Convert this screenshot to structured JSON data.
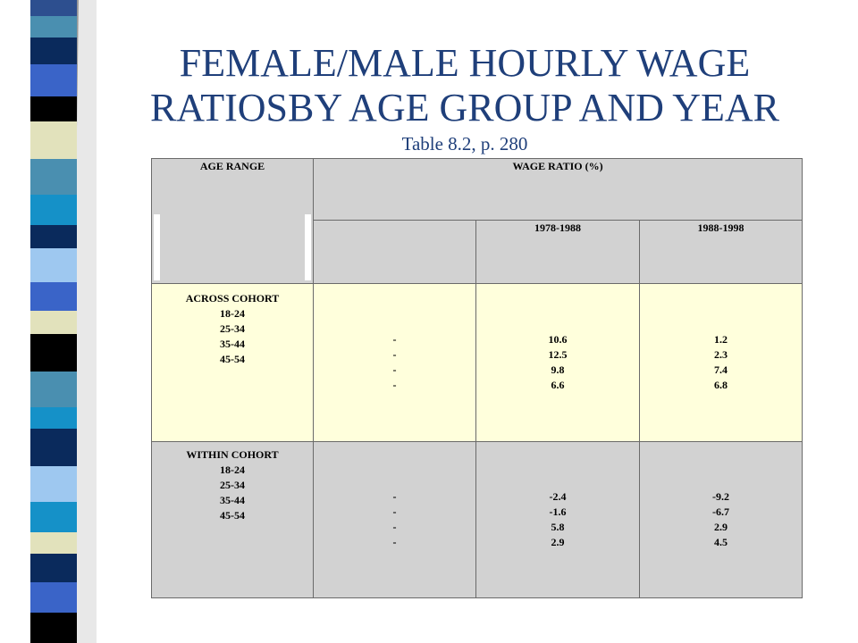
{
  "slide": {
    "title_line1": "FEMALE/MALE HOURLY WAGE",
    "title_line2": "RATIOSBY AGE GROUP AND YEAR",
    "subtitle": "Table 8.2, p. 280"
  },
  "table": {
    "col_age": "AGE RANGE",
    "col_ratio": "WAGE RATIO (%)",
    "periods": [
      "1978-1988",
      "1988-1998"
    ],
    "rows": [
      {
        "group": "ACROSS COHORT",
        "ages": [
          "18-24",
          "25-34",
          "35-44",
          "45-54"
        ],
        "blank": [
          "-",
          "-",
          "-",
          "-"
        ],
        "p1": [
          "10.6",
          "12.5",
          "9.8",
          "6.6"
        ],
        "p2": [
          "1.2",
          "2.3",
          "7.4",
          "6.8"
        ]
      },
      {
        "group": "WITHIN COHORT",
        "ages": [
          "18-24",
          "25-34",
          "35-44",
          "45-54"
        ],
        "blank": [
          "-",
          "-",
          "-",
          "-"
        ],
        "p1": [
          "-2.4",
          "-1.6",
          "5.8",
          "2.9"
        ],
        "p2": [
          "-9.2",
          "-6.7",
          "2.9",
          "4.5"
        ]
      }
    ]
  },
  "colors": {
    "title": "#1f3f7a",
    "header_bg": "#d2d2d2",
    "across_bg": "#ffffdc",
    "within_bg": "#d2d2d2"
  }
}
